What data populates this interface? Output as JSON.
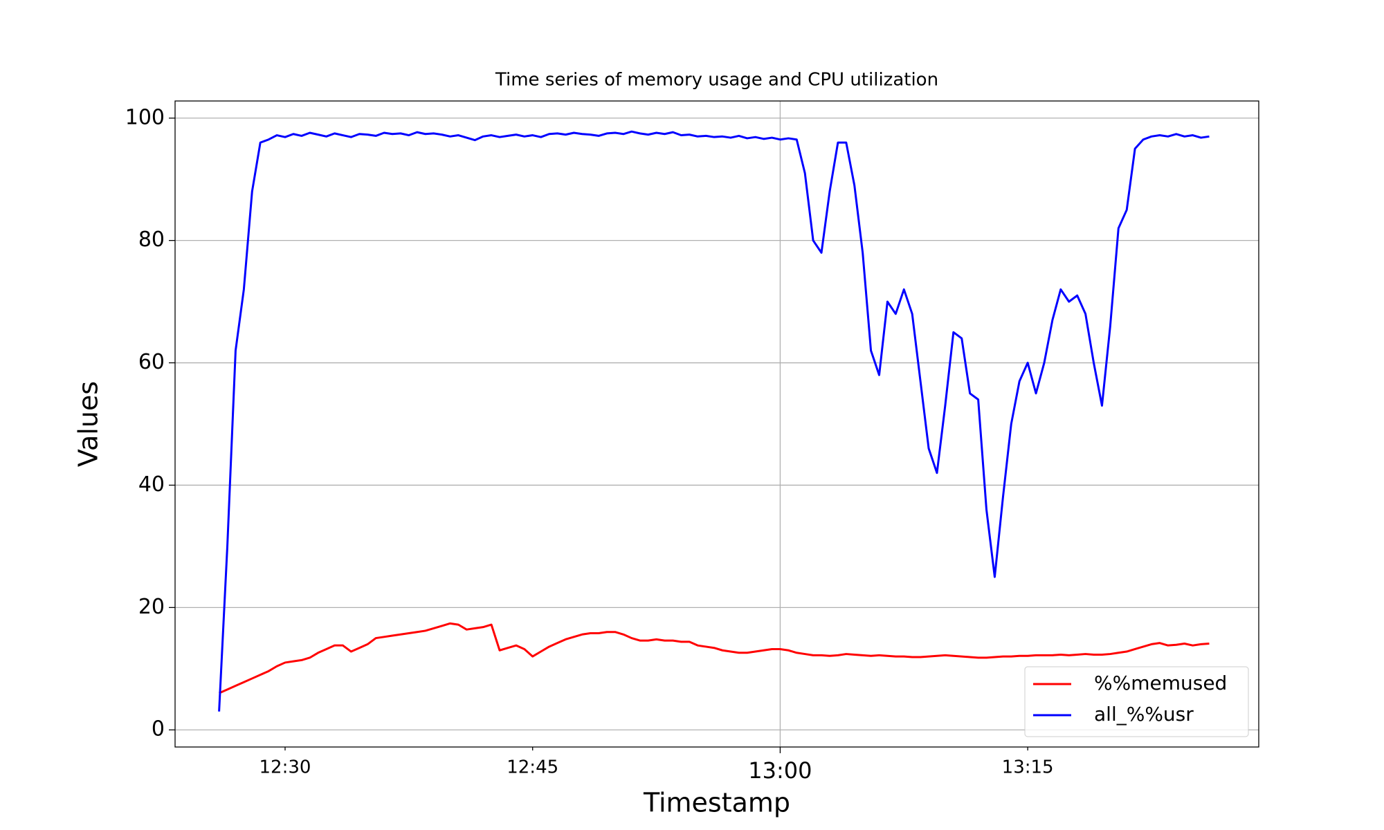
{
  "chart_data": {
    "type": "line",
    "title": "Time series of memory usage and CPU utilization",
    "x_label": "Timestamp",
    "y_label": "Values",
    "x": [
      "12:26:00",
      "12:26:30",
      "12:27:00",
      "12:27:30",
      "12:28:00",
      "12:28:30",
      "12:29:00",
      "12:29:30",
      "12:30:00",
      "12:30:30",
      "12:31:00",
      "12:31:30",
      "12:32:00",
      "12:32:30",
      "12:33:00",
      "12:33:30",
      "12:34:00",
      "12:34:30",
      "12:35:00",
      "12:35:30",
      "12:36:00",
      "12:36:30",
      "12:37:00",
      "12:37:30",
      "12:38:00",
      "12:38:30",
      "12:39:00",
      "12:39:30",
      "12:40:00",
      "12:40:30",
      "12:41:00",
      "12:41:30",
      "12:42:00",
      "12:42:30",
      "12:43:00",
      "12:43:30",
      "12:44:00",
      "12:44:30",
      "12:45:00",
      "12:45:30",
      "12:46:00",
      "12:46:30",
      "12:47:00",
      "12:47:30",
      "12:48:00",
      "12:48:30",
      "12:49:00",
      "12:49:30",
      "12:50:00",
      "12:50:30",
      "12:51:00",
      "12:51:30",
      "12:52:00",
      "12:52:30",
      "12:53:00",
      "12:53:30",
      "12:54:00",
      "12:54:30",
      "12:55:00",
      "12:55:30",
      "12:56:00",
      "12:56:30",
      "12:57:00",
      "12:57:30",
      "12:58:00",
      "12:58:30",
      "12:59:00",
      "12:59:30",
      "13:00:00",
      "13:00:30",
      "13:01:00",
      "13:01:30",
      "13:02:00",
      "13:02:30",
      "13:03:00",
      "13:03:30",
      "13:04:00",
      "13:04:30",
      "13:05:00",
      "13:05:30",
      "13:06:00",
      "13:06:30",
      "13:07:00",
      "13:07:30",
      "13:08:00",
      "13:08:30",
      "13:09:00",
      "13:09:30",
      "13:10:00",
      "13:10:30",
      "13:11:00",
      "13:11:30",
      "13:12:00",
      "13:12:30",
      "13:13:00",
      "13:13:30",
      "13:14:00",
      "13:14:30",
      "13:15:00",
      "13:15:30",
      "13:16:00",
      "13:16:30",
      "13:17:00",
      "13:17:30",
      "13:18:00",
      "13:18:30",
      "13:19:00",
      "13:19:30",
      "13:20:00",
      "13:20:30",
      "13:21:00",
      "13:21:30",
      "13:22:00",
      "13:22:30",
      "13:23:00",
      "13:23:30",
      "13:24:00",
      "13:24:30",
      "13:25:00",
      "13:25:30",
      "13:26:00"
    ],
    "series": [
      {
        "name": "%%memused",
        "color": "#ff0000",
        "values": [
          6,
          6.6,
          7.2,
          7.8,
          8.4,
          9,
          9.6,
          10.4,
          11,
          11.2,
          11.4,
          11.8,
          12.6,
          13.2,
          13.8,
          13.8,
          12.8,
          13.4,
          14,
          15,
          15.2,
          15.4,
          15.6,
          15.8,
          16,
          16.2,
          16.6,
          17,
          17.4,
          17.2,
          16.4,
          16.6,
          16.8,
          17.2,
          13,
          13.4,
          13.8,
          13.2,
          12,
          12.8,
          13.6,
          14.2,
          14.8,
          15.2,
          15.6,
          15.8,
          15.8,
          16,
          16,
          15.6,
          15,
          14.6,
          14.6,
          14.8,
          14.6,
          14.6,
          14.4,
          14.4,
          13.8,
          13.6,
          13.4,
          13,
          12.8,
          12.6,
          12.6,
          12.8,
          13,
          13.2,
          13.2,
          13,
          12.6,
          12.4,
          12.2,
          12.2,
          12.1,
          12.2,
          12.4,
          12.3,
          12.2,
          12.1,
          12.2,
          12.1,
          12,
          12,
          11.9,
          11.9,
          12,
          12.1,
          12.2,
          12.1,
          12,
          11.9,
          11.8,
          11.8,
          11.9,
          12,
          12,
          12.1,
          12.1,
          12.2,
          12.2,
          12.2,
          12.3,
          12.2,
          12.3,
          12.4,
          12.3,
          12.3,
          12.4,
          12.6,
          12.8,
          13.2,
          13.6,
          14,
          14.2,
          13.8,
          13.9,
          14.1,
          13.8,
          14,
          14.1
        ]
      },
      {
        "name": "all_%%usr",
        "color": "#0000ff",
        "values": [
          3,
          30,
          62,
          72,
          88,
          96,
          96.5,
          97.2,
          96.9,
          97.4,
          97.1,
          97.6,
          97.3,
          97.0,
          97.5,
          97.2,
          96.9,
          97.4,
          97.3,
          97.1,
          97.6,
          97.4,
          97.5,
          97.2,
          97.7,
          97.4,
          97.5,
          97.3,
          97.0,
          97.2,
          96.8,
          96.4,
          97.0,
          97.2,
          96.9,
          97.1,
          97.3,
          97.0,
          97.2,
          96.9,
          97.4,
          97.5,
          97.3,
          97.6,
          97.4,
          97.3,
          97.1,
          97.5,
          97.6,
          97.4,
          97.8,
          97.5,
          97.3,
          97.6,
          97.4,
          97.7,
          97.2,
          97.3,
          97.0,
          97.1,
          96.9,
          97.0,
          96.8,
          97.1,
          96.7,
          96.9,
          96.6,
          96.8,
          96.5,
          96.7,
          96.5,
          91,
          80,
          78,
          88,
          96,
          96,
          89,
          78,
          62,
          58,
          70,
          68,
          72,
          68,
          57,
          46,
          42,
          53,
          65,
          64,
          55,
          54,
          36,
          25,
          38,
          50,
          57,
          60,
          55,
          60,
          67,
          72,
          70,
          71,
          68,
          60,
          53,
          66,
          82,
          85,
          95,
          96.5,
          97,
          97.2,
          97,
          97.4,
          97,
          97.2,
          96.8,
          97
        ]
      }
    ],
    "xlim": [
      "12:23:20",
      "13:29:00"
    ],
    "xticks": [
      "12:30",
      "12:45",
      "13:00",
      "13:15"
    ],
    "ylim": [
      -2.8,
      102.8
    ],
    "yticks": [
      0,
      20,
      40,
      60,
      80,
      100
    ],
    "grid": true,
    "legend": "lower right"
  }
}
